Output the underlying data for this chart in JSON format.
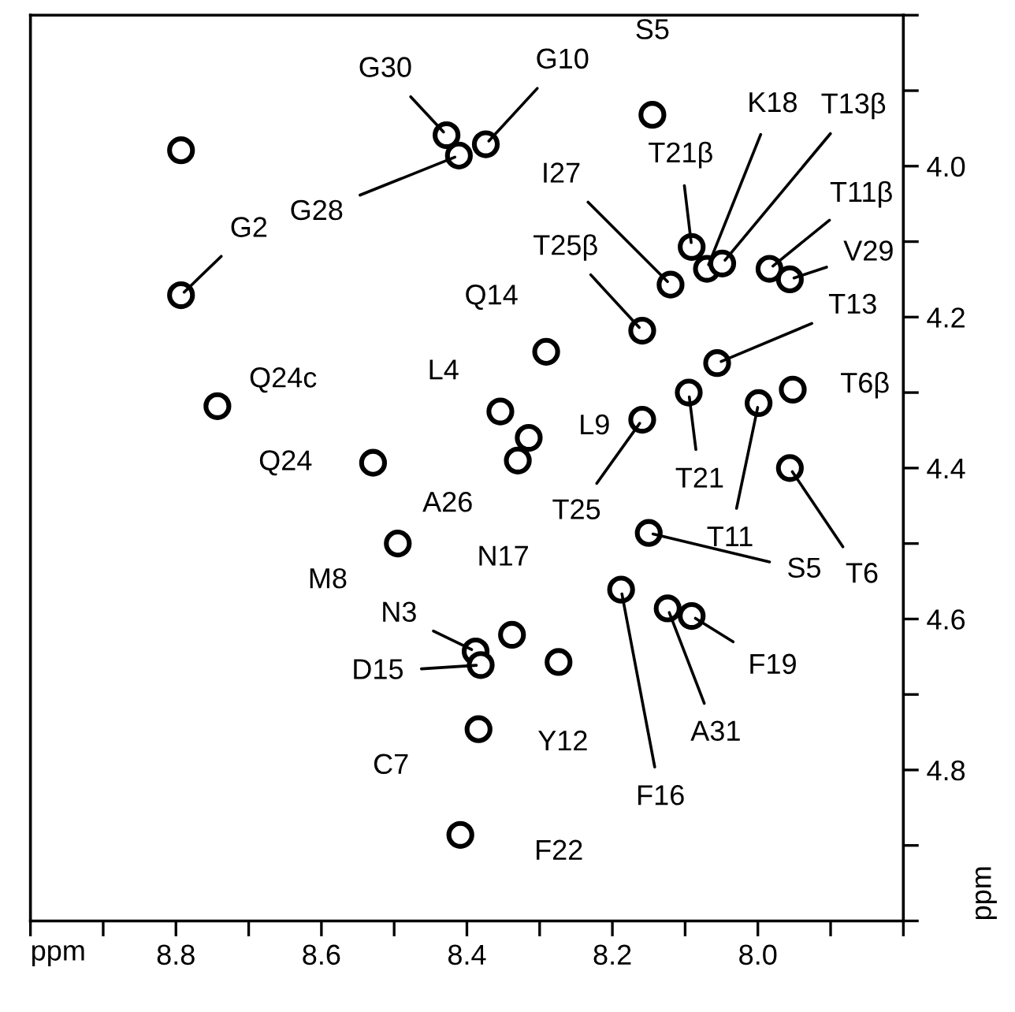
{
  "chart_data": {
    "type": "scatter",
    "xlabel": "ppm",
    "ylabel": "ppm",
    "color": "#000000",
    "marker": "circle",
    "grid": false,
    "x": [
      8.793,
      8.793,
      8.743,
      8.529,
      8.428,
      8.411,
      8.374,
      8.145,
      8.354,
      8.315,
      8.33,
      8.291,
      8.159,
      8.12,
      8.091,
      8.07,
      8.049,
      7.984,
      7.956,
      8.056,
      8.095,
      8.159,
      7.999,
      7.952,
      7.956,
      8.15,
      8.188,
      8.124,
      8.091,
      8.274,
      8.338,
      8.495,
      8.388,
      8.381,
      8.384,
      8.409
    ],
    "values": [
      3.979,
      4.171,
      4.318,
      4.393,
      3.959,
      3.986,
      3.971,
      3.932,
      4.325,
      4.36,
      4.39,
      4.246,
      4.218,
      4.157,
      4.107,
      4.136,
      4.129,
      4.136,
      4.15,
      4.261,
      4.3,
      4.336,
      4.314,
      4.296,
      4.4,
      4.486,
      4.561,
      4.586,
      4.596,
      4.657,
      4.621,
      4.5,
      4.643,
      4.661,
      4.746,
      4.886
    ],
    "xlim": [
      9.0,
      7.8
    ],
    "ylim": [
      5.0,
      3.8
    ],
    "xticks": [
      {
        "value": 9.0,
        "label": null
      },
      {
        "value": 8.9,
        "label": null
      },
      8.8,
      {
        "value": 8.7,
        "label": null
      },
      8.6,
      {
        "value": 8.5,
        "label": null
      },
      8.4,
      {
        "value": 8.3,
        "label": null
      },
      8.2,
      {
        "value": 8.1,
        "label": null
      },
      {
        "value": 8.0,
        "label": "8.0"
      },
      {
        "value": 7.9,
        "label": null
      },
      {
        "value": 7.8,
        "label": null
      }
    ],
    "yticks": [
      {
        "value": 3.8,
        "label": null
      },
      {
        "value": 3.9,
        "label": null
      },
      {
        "value": 4.0,
        "label": "4.0"
      },
      {
        "value": 4.1,
        "label": null
      },
      4.2,
      {
        "value": 4.3,
        "label": null
      },
      4.4,
      {
        "value": 4.5,
        "label": null
      },
      4.6,
      {
        "value": 4.7,
        "label": null
      },
      4.8,
      {
        "value": 4.9,
        "label": null
      },
      {
        "value": 5.0,
        "label": null
      }
    ],
    "annotations": [
      {
        "text": "G2",
        "x": 8.793,
        "y": 4.171
      },
      {
        "text": "Q24c",
        "x": 8.743,
        "y": 4.318
      },
      {
        "text": "Q24",
        "x": 8.529,
        "y": 4.393
      },
      {
        "text": "G30",
        "x": 8.428,
        "y": 3.959
      },
      {
        "text": "G28",
        "x": 8.411,
        "y": 3.986
      },
      {
        "text": "G10",
        "x": 8.374,
        "y": 3.971
      },
      {
        "text": "S5",
        "x": 8.145,
        "y": 3.932
      },
      {
        "text": "L4",
        "x": 8.354,
        "y": 4.325
      },
      {
        "text": "L9",
        "x": 8.315,
        "y": 4.36
      },
      {
        "text": "A26",
        "x": 8.33,
        "y": 4.39
      },
      {
        "text": "Q14",
        "x": 8.291,
        "y": 4.246
      },
      {
        "text": "T25β",
        "x": 8.159,
        "y": 4.218
      },
      {
        "text": "I27",
        "x": 8.12,
        "y": 4.157
      },
      {
        "text": "T21β",
        "x": 8.091,
        "y": 4.107
      },
      {
        "text": "K18",
        "x": 8.07,
        "y": 4.136
      },
      {
        "text": "T13β",
        "x": 8.049,
        "y": 4.129
      },
      {
        "text": "T11β",
        "x": 7.984,
        "y": 4.136
      },
      {
        "text": "V29",
        "x": 7.956,
        "y": 4.15
      },
      {
        "text": "T13",
        "x": 8.056,
        "y": 4.261
      },
      {
        "text": "T21",
        "x": 8.095,
        "y": 4.3
      },
      {
        "text": "T25",
        "x": 8.159,
        "y": 4.336
      },
      {
        "text": "T11",
        "x": 7.999,
        "y": 4.314
      },
      {
        "text": "T6β",
        "x": 7.952,
        "y": 4.296
      },
      {
        "text": "T6",
        "x": 7.956,
        "y": 4.4
      },
      {
        "text": "S5",
        "x": 8.15,
        "y": 4.486
      },
      {
        "text": "F16",
        "x": 8.188,
        "y": 4.561
      },
      {
        "text": "A31",
        "x": 8.124,
        "y": 4.586
      },
      {
        "text": "F19",
        "x": 8.091,
        "y": 4.596
      },
      {
        "text": "Y12",
        "x": 8.274,
        "y": 4.657
      },
      {
        "text": "N17",
        "x": 8.338,
        "y": 4.621
      },
      {
        "text": "M8",
        "x": 8.495,
        "y": 4.5
      },
      {
        "text": "N3",
        "x": 8.388,
        "y": 4.643
      },
      {
        "text": "D15",
        "x": 8.381,
        "y": 4.661
      },
      {
        "text": "C7",
        "x": 8.384,
        "y": 4.746
      },
      {
        "text": "F22",
        "x": 8.409,
        "y": 4.886
      }
    ]
  }
}
